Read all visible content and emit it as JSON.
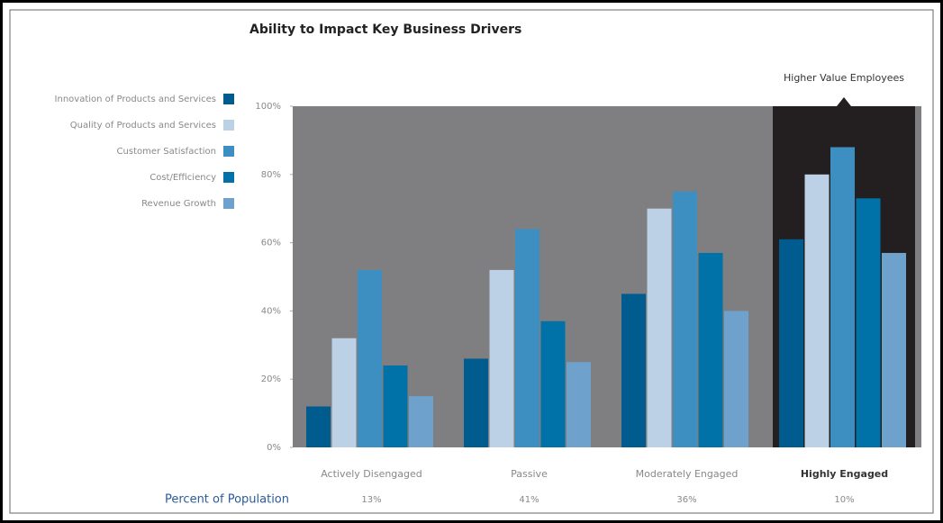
{
  "chart_data": {
    "type": "bar",
    "title": "Ability to Impact Key Business Drivers",
    "categories": [
      "Actively Disengaged",
      "Passive",
      "Moderately Engaged",
      "Highly Engaged"
    ],
    "series": [
      {
        "name": "Innovation of Products and Services",
        "color": "#005b8e",
        "values": [
          12,
          26,
          45,
          61
        ]
      },
      {
        "name": "Quality of Products and Services",
        "color": "#bcd0e6",
        "values": [
          32,
          52,
          70,
          80
        ]
      },
      {
        "name": "Customer Satisfaction",
        "color": "#3d8fc1",
        "values": [
          52,
          64,
          75,
          88
        ]
      },
      {
        "name": "Cost/Efficiency",
        "color": "#0072a8",
        "values": [
          24,
          37,
          57,
          73
        ]
      },
      {
        "name": "Revenue Growth",
        "color": "#6ea2cd",
        "values": [
          15,
          25,
          40,
          57
        ]
      }
    ],
    "ylim": [
      0,
      100
    ],
    "yticks": [
      {
        "value": 0,
        "label": "0%"
      },
      {
        "value": 20,
        "label": "20%"
      },
      {
        "value": 40,
        "label": "40%"
      },
      {
        "value": 60,
        "label": "60%"
      },
      {
        "value": 80,
        "label": "80%"
      },
      {
        "value": 100,
        "label": "100%"
      }
    ],
    "highlight": 3,
    "highlight_label": "Higher Value Employees",
    "population_title": "Percent of Population",
    "population": [
      "13%",
      "41%",
      "36%",
      "10%"
    ],
    "legend": "left"
  }
}
